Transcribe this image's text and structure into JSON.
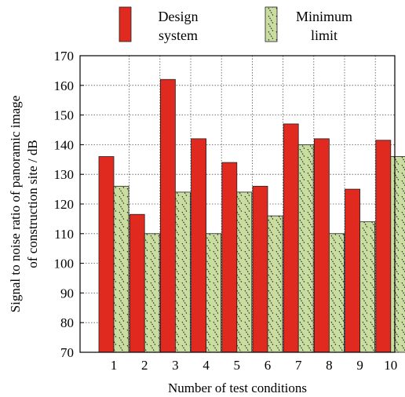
{
  "chart_data": {
    "type": "bar",
    "title": "",
    "xlabel": "Number of test conditions",
    "ylabel": "Signal to noise ratio of panoramic image of construction site / dB",
    "ylabel_lines": [
      "Signal to noise ratio of panoramic image",
      "of construction site / dB"
    ],
    "ylim": [
      70,
      170
    ],
    "yticks": [
      "70",
      "80",
      "90",
      "100",
      "110",
      "120",
      "130",
      "140",
      "150",
      "160",
      "170"
    ],
    "categories": [
      "1",
      "2",
      "3",
      "4",
      "5",
      "6",
      "7",
      "8",
      "9",
      "10"
    ],
    "grid": true,
    "legend_position": "top",
    "series": [
      {
        "name": "Design system",
        "name_lines": [
          "Design",
          "system"
        ],
        "color": "#e02a1f",
        "pattern": "solid",
        "values": [
          136,
          116.5,
          162,
          142,
          134,
          126,
          147,
          142,
          125,
          141.5
        ]
      },
      {
        "name": "Minimum limit",
        "name_lines": [
          "Minimum",
          "limit"
        ],
        "color": "#c9dda0",
        "pattern": "dotted-diagonal",
        "values": [
          126,
          110,
          124,
          110,
          124,
          116,
          140,
          110,
          114,
          136
        ]
      }
    ]
  }
}
